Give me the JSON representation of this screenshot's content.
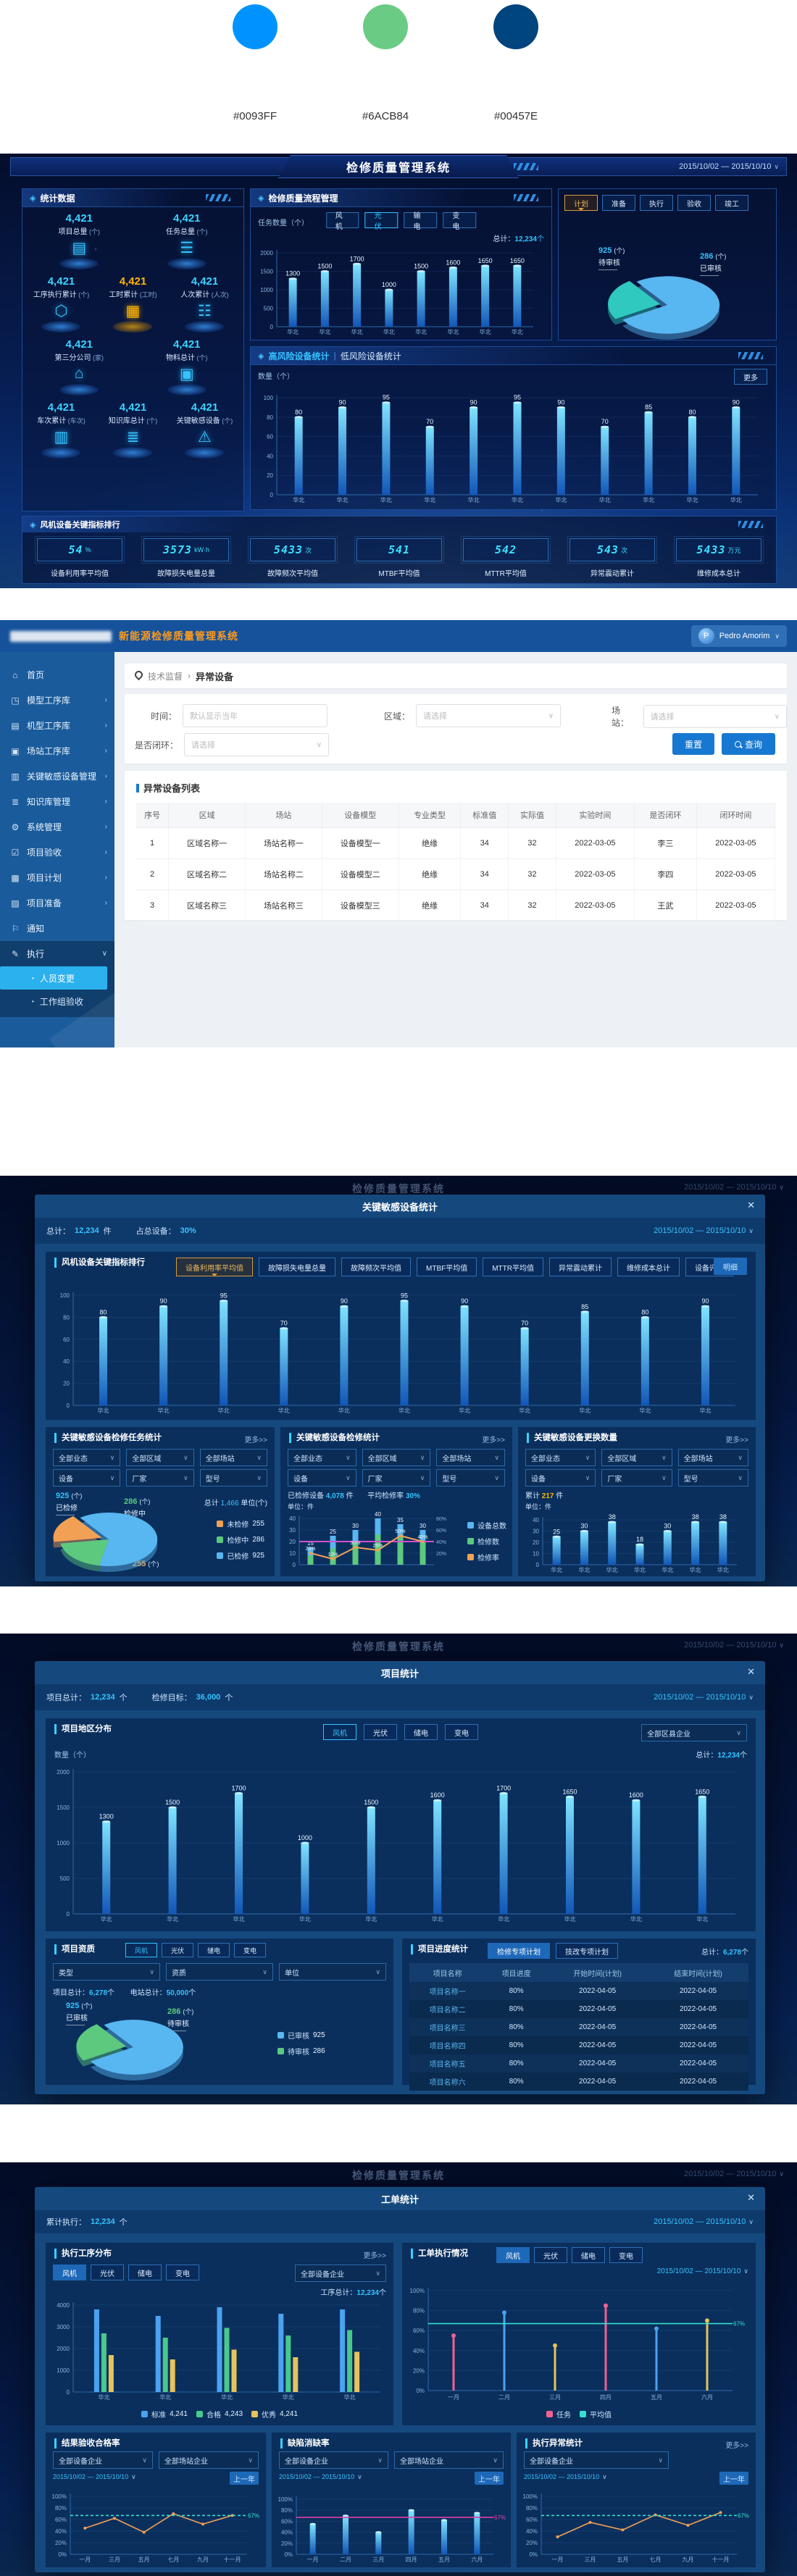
{
  "palette": {
    "labels": [
      "#0093FF",
      "#6ACB84",
      "#00457E"
    ],
    "colors": [
      "#0093FF",
      "#6ACB84",
      "#00457E"
    ]
  },
  "dash1": {
    "header_title": "检修质量管理系统",
    "date_range": "2015/10/02 — 2015/10/10",
    "stats": {
      "title": "统计数据",
      "items": [
        {
          "value": "4,421",
          "label": "项目总量",
          "unit": "(个)",
          "glyph": "▤",
          "icon": "folder-icon",
          "highlight": false
        },
        {
          "value": "4,421",
          "label": "任务总量",
          "unit": "(个)",
          "glyph": "☰",
          "icon": "list-icon",
          "highlight": false
        },
        {
          "value": "4,421",
          "label": "工序执行累计",
          "unit": "(个)",
          "glyph": "⬡",
          "icon": "hexagon-icon",
          "highlight": false
        },
        {
          "value": "4,421",
          "label": "工时累计",
          "unit": "(工时)",
          "glyph": "▦",
          "icon": "calendar-icon",
          "highlight": true
        },
        {
          "value": "4,421",
          "label": "人次累计",
          "unit": "(人次)",
          "glyph": "☷",
          "icon": "people-icon",
          "highlight": false
        },
        {
          "value": "4,421",
          "label": "第三分公司",
          "unit": "(家)",
          "glyph": "⌂",
          "icon": "building-icon",
          "highlight": false
        },
        {
          "value": "4,421",
          "label": "物料总计",
          "unit": "(个)",
          "glyph": "▣",
          "icon": "briefcase-icon",
          "highlight": false
        },
        {
          "value": "4,421",
          "label": "车次累计",
          "unit": "(车次)",
          "glyph": "▥",
          "icon": "truck-icon",
          "highlight": false
        },
        {
          "value": "4,421",
          "label": "知识库总计",
          "unit": "(个)",
          "glyph": "≣",
          "icon": "book-icon",
          "highlight": false
        },
        {
          "value": "4,421",
          "label": "关键敏感设备",
          "unit": "(个)",
          "glyph": "⚠",
          "icon": "alert-icon",
          "highlight": false
        }
      ]
    },
    "flow": {
      "title": "检修质量流程管理",
      "tabs": [
        "风机",
        "光伏",
        "输电",
        "变电"
      ],
      "active": 1,
      "total_label": "总计：",
      "total_value": "12,234",
      "total_unit": "个"
    },
    "status": {
      "tabs": [
        "计划",
        "准备",
        "执行",
        "验收",
        "竣工"
      ],
      "active": 0
    },
    "risk": {
      "title_a": "高风险设备统计",
      "title_b": "低风险设备统计",
      "more": "更多"
    },
    "rank": {
      "title": "风机设备关键指标排行",
      "cards": [
        {
          "value": "54",
          "unit": "%",
          "label": "设备利用率平均值"
        },
        {
          "value": "3573",
          "unit": "kW·h",
          "label": "故障损失电量总量"
        },
        {
          "value": "5433",
          "unit": "次",
          "label": "故障频次平均值"
        },
        {
          "value": "541",
          "unit": "",
          "label": "MTBF平均值"
        },
        {
          "value": "542",
          "unit": "",
          "label": "MTTR平均值"
        },
        {
          "value": "543",
          "unit": "次",
          "label": "异常震动累计"
        },
        {
          "value": "5433",
          "unit": "万元",
          "label": "维修成本总计"
        }
      ]
    }
  },
  "admin": {
    "brand": "新能源检修质量管理系统",
    "user": "Pedro Amorim",
    "user_initial": "P",
    "sidebar": [
      {
        "glyph": "⌂",
        "label": "首页",
        "arrow": "",
        "icon": "home-icon"
      },
      {
        "glyph": "◳",
        "label": "模型工序库",
        "arrow": "›",
        "icon": "model-icon"
      },
      {
        "glyph": "▤",
        "label": "机型工序库",
        "arrow": "›",
        "icon": "machine-icon"
      },
      {
        "glyph": "▣",
        "label": "场站工序库",
        "arrow": "›",
        "icon": "station-icon"
      },
      {
        "glyph": "▥",
        "label": "关键敏感设备管理",
        "arrow": "›",
        "icon": "device-icon"
      },
      {
        "glyph": "≣",
        "label": "知识库管理",
        "arrow": "›",
        "icon": "knowledge-icon"
      },
      {
        "glyph": "⚙",
        "label": "系统管理",
        "arrow": "›",
        "icon": "system-icon"
      },
      {
        "glyph": "☑",
        "label": "项目验收",
        "arrow": "›",
        "icon": "accept-icon"
      },
      {
        "glyph": "▩",
        "label": "项目计划",
        "arrow": "›",
        "icon": "plan-icon"
      },
      {
        "glyph": "▨",
        "label": "项目准备",
        "arrow": "›",
        "icon": "prepare-icon"
      },
      {
        "glyph": "⚐",
        "label": "通知",
        "arrow": "",
        "icon": "notice-icon"
      },
      {
        "glyph": "✎",
        "label": "执行",
        "arrow": "∨",
        "icon": "exec-icon",
        "expanded": true,
        "children": [
          {
            "label": "人员变更",
            "active": true
          },
          {
            "label": "工作组验收",
            "active": false
          }
        ]
      }
    ],
    "breadcrumb": {
      "root": "技术监督",
      "sep": "›",
      "current": "异常设备"
    },
    "filters": {
      "time_label": "时间：",
      "time_placeholder": "默认显示当年",
      "region_label": "区域：",
      "region_placeholder": "请选择",
      "station_label": "场站：",
      "station_placeholder": "请选择",
      "loop_label": "是否闭环：",
      "loop_placeholder": "请选择",
      "reset": "重置",
      "search": "查询"
    },
    "table": {
      "title": "异常设备列表",
      "columns": [
        "序号",
        "区域",
        "场站",
        "设备模型",
        "专业类型",
        "标准值",
        "实际值",
        "实验时间",
        "是否闭环",
        "闭环时间"
      ],
      "rows": [
        [
          "1",
          "区域名称一",
          "场站名称一",
          "设备模型一",
          "绝缘",
          "34",
          "32",
          "2022-03-05",
          "李三",
          "2022-03-05"
        ],
        [
          "2",
          "区域名称二",
          "场站名称二",
          "设备模型二",
          "绝缘",
          "34",
          "32",
          "2022-03-05",
          "李四",
          "2022-03-05"
        ],
        [
          "3",
          "区域名称三",
          "场站名称三",
          "设备模型三",
          "绝缘",
          "34",
          "32",
          "2022-03-05",
          "王武",
          "2022-03-05"
        ]
      ]
    }
  },
  "modalA": {
    "backdrop_title": "检修质量管理系统",
    "date_range": "2015/10/02 — 2015/10/10",
    "title": "关键敏感设备统计",
    "total_label": "总计：",
    "total_value": "12,234",
    "total_unit": "件",
    "ratio_label": "占总设备：",
    "ratio_value": "30%",
    "kpi": {
      "title": "风机设备关键指标排行",
      "chips": [
        "设备利用率平均值",
        "故障损失电量总量",
        "故障频次平均值",
        "MTBF平均值",
        "MTTR平均值",
        "异常震动累计",
        "维修成本总计",
        "设备评分"
      ],
      "active": 0,
      "detail": "明细"
    },
    "filters": [
      "全部业态",
      "全部区域",
      "全部场站",
      "设备",
      "厂家",
      "型号"
    ],
    "p1": {
      "title": "关键敏感设备检修任务统计",
      "more": "更多>>",
      "total_label": "总计",
      "total_value": "1,466",
      "total_unit": "单位(个)"
    },
    "p2": {
      "title": "关键敏感设备检修统计",
      "more": "更多>>",
      "stat1_label": "已检修设备",
      "stat1_value": "4,078",
      "stat1_unit": "件",
      "stat2_label": "平均检修率",
      "stat2_value": "30%",
      "unit": "单位：件"
    },
    "p3": {
      "title": "关键敏感设备更换数量",
      "more": "更多>>",
      "total_label": "累计",
      "total_value": "217",
      "total_unit": "件",
      "unit": "单位：件"
    }
  },
  "modalB": {
    "backdrop_title": "检修质量管理系统",
    "date_range": "2015/10/02 — 2015/10/10",
    "title": "项目统计",
    "stat1_label": "项目总计：",
    "stat1_value": "12,234",
    "stat1_unit": "个",
    "stat2_label": "检修目标：",
    "stat2_value": "36,000",
    "stat2_unit": "个",
    "region": {
      "title": "项目地区分布",
      "tabs": [
        "风机",
        "光伏",
        "储电",
        "变电"
      ],
      "active": 0,
      "drop": "全部区县企业",
      "total_label": "总计：",
      "total_value": "12,234",
      "total_unit": "个"
    },
    "qual": {
      "title": "项目资质",
      "tabs": [
        "风机",
        "光伏",
        "储电",
        "变电"
      ],
      "active": 0,
      "drops": [
        "类型",
        "资质",
        "单位"
      ],
      "stat1_label": "项目总计：",
      "stat1_value": "6,278",
      "stat1_unit": "个",
      "stat2_label": "电站总计：",
      "stat2_value": "50,000",
      "stat2_unit": "个"
    },
    "prog": {
      "title": "项目进度统计",
      "chips": [
        "检修专项计划",
        "技改专项计划"
      ],
      "active": 0,
      "total_label": "总计：",
      "total_value": "6,278",
      "total_unit": "个",
      "columns": [
        "项目名称",
        "项目进度",
        "开始时间(计划)",
        "结束时间(计划)"
      ],
      "rows": [
        [
          "项目名称一",
          "80%",
          "2022-04-05",
          "2022-04-05"
        ],
        [
          "项目名称二",
          "80%",
          "2022-04-05",
          "2022-04-05"
        ],
        [
          "项目名称三",
          "80%",
          "2022-04-05",
          "2022-04-05"
        ],
        [
          "项目名称四",
          "80%",
          "2022-04-05",
          "2022-04-05"
        ],
        [
          "项目名称五",
          "80%",
          "2022-04-05",
          "2022-04-05"
        ],
        [
          "项目名称六",
          "80%",
          "2022-04-05",
          "2022-04-05"
        ]
      ]
    }
  },
  "modalC": {
    "backdrop_title": "检修质量管理系统",
    "date_range": "2015/10/02 — 2015/10/10",
    "title": "工单统计",
    "stat_label": "累计执行：",
    "stat_value": "12,234",
    "stat_unit": "个",
    "proc": {
      "title": "执行工序分布",
      "tabs": [
        "风机",
        "光伏",
        "储电",
        "变电"
      ],
      "active": 0,
      "drop": "全部设备企业",
      "more": "更多>>",
      "total_label": "工序总计：",
      "total_value": "12,234",
      "total_unit": "个"
    },
    "order": {
      "title": "工单执行情况",
      "tabs": [
        "风机",
        "光伏",
        "储电",
        "变电"
      ],
      "active": 0
    },
    "pass": {
      "title": "结果验收合格率",
      "drops": [
        "全部设备企业",
        "全部场站企业"
      ],
      "chip": "上一年"
    },
    "defect": {
      "title": "缺陷消缺率",
      "drops": [
        "全部设备企业",
        "全部场站企业"
      ],
      "chip": "上一年"
    },
    "abn": {
      "title": "执行异常统计",
      "more": "更多>>",
      "drops": [
        "全部设备企业"
      ],
      "chip": "上一年"
    }
  },
  "chart_data": {
    "flow": {
      "type": "bar",
      "title": "检修质量流程管理",
      "ylabel": "任务数量（个）",
      "ymax": 2000,
      "yticks": [
        0,
        500,
        1000,
        1500,
        2000
      ],
      "categories": [
        "华北",
        "华北",
        "华北",
        "华北",
        "华北",
        "华北",
        "华北",
        "华北"
      ],
      "values": [
        1300,
        1500,
        1700,
        1000,
        1500,
        1600,
        1650,
        1650
      ]
    },
    "status_pie": {
      "type": "pie",
      "explode": 1,
      "slices": [
        {
          "label": "待审核",
          "value": 925,
          "unit": "(个)",
          "color": "#58b6f0"
        },
        {
          "label": "已审核",
          "value": 286,
          "unit": "(个)",
          "color": "#2fc9c0"
        }
      ]
    },
    "risk": {
      "type": "bar",
      "title": "高风险设备统计",
      "ylabel": "数量（个）",
      "ymax": 100,
      "yticks": [
        0,
        20,
        40,
        60,
        80,
        100
      ],
      "categories": [
        "华北",
        "华北",
        "华北",
        "华北",
        "华北",
        "华北",
        "华北",
        "华北",
        "华北",
        "华北",
        "华北"
      ],
      "values": [
        80,
        90,
        95,
        70,
        90,
        95,
        90,
        70,
        85,
        80,
        90
      ]
    },
    "kpi": {
      "type": "bar",
      "title": "风机设备关键指标排行",
      "ylabel": "分数",
      "ymax": 100,
      "yticks": [
        0,
        20,
        40,
        60,
        80,
        100
      ],
      "categories": [
        "华北",
        "华北",
        "华北",
        "华北",
        "华北",
        "华北",
        "华北",
        "华北",
        "华北",
        "华北",
        "华北"
      ],
      "values": [
        80,
        90,
        95,
        70,
        90,
        95,
        90,
        70,
        85,
        80,
        90
      ]
    },
    "task_pie": {
      "type": "pie",
      "explode": 2,
      "slices": [
        {
          "label": "已检修",
          "value": 925,
          "unit": "(个)",
          "color": "#58b6f0"
        },
        {
          "label": "检修中",
          "value": 286,
          "unit": "(个)",
          "color": "#5cc97e"
        },
        {
          "label": "未检修",
          "value": 255,
          "unit": "(个)",
          "color": "#f2a054"
        }
      ],
      "legend": [
        {
          "label": "未检修",
          "value": "255",
          "color": "#f2a054"
        },
        {
          "label": "检修中",
          "value": "286",
          "color": "#5cc97e"
        },
        {
          "label": "已检修",
          "value": "925",
          "color": "#58b6f0"
        }
      ]
    },
    "repair": {
      "type": "combo",
      "unit": "单位：件",
      "ymax": 40,
      "yticks": [
        0,
        10,
        20,
        30,
        40
      ],
      "y2ticks": [
        "20%",
        "40%",
        "60%",
        "80%"
      ],
      "categories": [
        "华北",
        "华北",
        "华北",
        "华北",
        "华北",
        "华北"
      ],
      "totals": [
        15,
        25,
        30,
        40,
        35,
        30
      ],
      "inner": [
        8,
        14,
        20,
        26,
        24,
        20
      ],
      "rate": [
        20,
        10,
        30,
        25,
        50,
        40
      ],
      "rate_labels": [
        "20%",
        "10%",
        "30%",
        "25%",
        "50%",
        "40%"
      ],
      "hline": 40,
      "legend": [
        {
          "label": "设备总数",
          "color": "#58b6f0"
        },
        {
          "label": "检修数",
          "color": "#5cc97e"
        },
        {
          "label": "检修率",
          "color": "#f2a054"
        }
      ]
    },
    "replace": {
      "type": "bar",
      "ymax": 40,
      "yticks": [
        0,
        10,
        20,
        30,
        40
      ],
      "categories": [
        "华北",
        "华北",
        "华北",
        "华北",
        "华北",
        "华北",
        "华北"
      ],
      "values": [
        25,
        30,
        38,
        18,
        30,
        38,
        38
      ]
    },
    "region": {
      "type": "bar",
      "title": "项目地区分布",
      "ylabel": "数量（个）",
      "ymax": 2000,
      "yticks": [
        0,
        500,
        1000,
        1500,
        2000
      ],
      "categories": [
        "华北",
        "华北",
        "华北",
        "华北",
        "华北",
        "华北",
        "华北",
        "华北",
        "华北",
        "华北"
      ],
      "values": [
        1300,
        1500,
        1700,
        1000,
        1500,
        1600,
        1700,
        1650,
        1600,
        1650
      ]
    },
    "qual_pie": {
      "type": "pie",
      "explode": 1,
      "slices": [
        {
          "label": "已审核",
          "value": 925,
          "unit": "(个)",
          "color": "#58b6f0"
        },
        {
          "label": "待审核",
          "value": 286,
          "unit": "(个)",
          "color": "#5cc97e"
        }
      ],
      "legend": [
        {
          "label": "已审核",
          "value": "925",
          "color": "#58b6f0"
        },
        {
          "label": "待审核",
          "value": "286",
          "color": "#5cc97e"
        }
      ]
    },
    "proc": {
      "type": "grouped",
      "ymax": 4000,
      "yticks": [
        0,
        1000,
        2000,
        3000,
        4000
      ],
      "categories": [
        "华北",
        "华北",
        "华北",
        "华北",
        "华北"
      ],
      "series": [
        {
          "name": "标准",
          "value": "4,241",
          "color": "#4aa3f0",
          "values": [
            3800,
            3500,
            3900,
            3600,
            3800
          ]
        },
        {
          "name": "合格",
          "value": "4,243",
          "color": "#49c98d",
          "values": [
            2700,
            2500,
            2950,
            2600,
            2850
          ]
        },
        {
          "name": "优秀",
          "value": "4,241",
          "color": "#e8c25a",
          "values": [
            1700,
            1500,
            1950,
            1600,
            1850
          ]
        }
      ]
    },
    "order": {
      "type": "lolli",
      "ymax": 100,
      "yticks": [
        0,
        20,
        40,
        60,
        80,
        100
      ],
      "ypct": true,
      "categories": [
        "一月",
        "二月",
        "三月",
        "四月",
        "五月",
        "六月"
      ],
      "values": [
        55,
        78,
        45,
        85,
        62,
        70
      ],
      "colors": [
        "#f06292",
        "#4aa3f0",
        "#e8c25a"
      ],
      "hline": 67,
      "hlabel": "67%",
      "hcolor": "#35e0d0",
      "legend": [
        {
          "label": "任务",
          "color": "#f06292"
        },
        {
          "label": "平均值",
          "color": "#35e0d0"
        }
      ]
    },
    "pass": {
      "type": "line",
      "ymax": 100,
      "yticks": [
        0,
        20,
        40,
        60,
        80,
        100
      ],
      "ypct": true,
      "categories": [
        "一月",
        "三月",
        "五月",
        "七月",
        "九月",
        "十一月"
      ],
      "values": [
        45,
        62,
        38,
        70,
        52,
        67
      ],
      "color": "#f2a054",
      "hline": 67,
      "hlabel": "67%",
      "hcolor": "#35e0d0"
    },
    "defect": {
      "type": "bar",
      "ymax": 100,
      "yticks": [
        0,
        20,
        40,
        60,
        80,
        100
      ],
      "ypct": true,
      "labels": false,
      "bw": 8,
      "categories": [
        "一月",
        "二月",
        "三月",
        "四月",
        "五月",
        "六月"
      ],
      "values": [
        55,
        70,
        40,
        80,
        62,
        75
      ],
      "hline": 67,
      "hlabel": "67%",
      "hcolor": "#e23fa4"
    },
    "abn": {
      "type": "line",
      "ymax": 100,
      "yticks": [
        0,
        20,
        40,
        60,
        80,
        100
      ],
      "ypct": true,
      "categories": [
        "一月",
        "三月",
        "五月",
        "七月",
        "九月",
        "十一月"
      ],
      "values": [
        30,
        55,
        42,
        68,
        50,
        72
      ],
      "color": "#f2a054",
      "hline": 67,
      "hlabel": "67%",
      "hcolor": "#35e0d0"
    }
  }
}
